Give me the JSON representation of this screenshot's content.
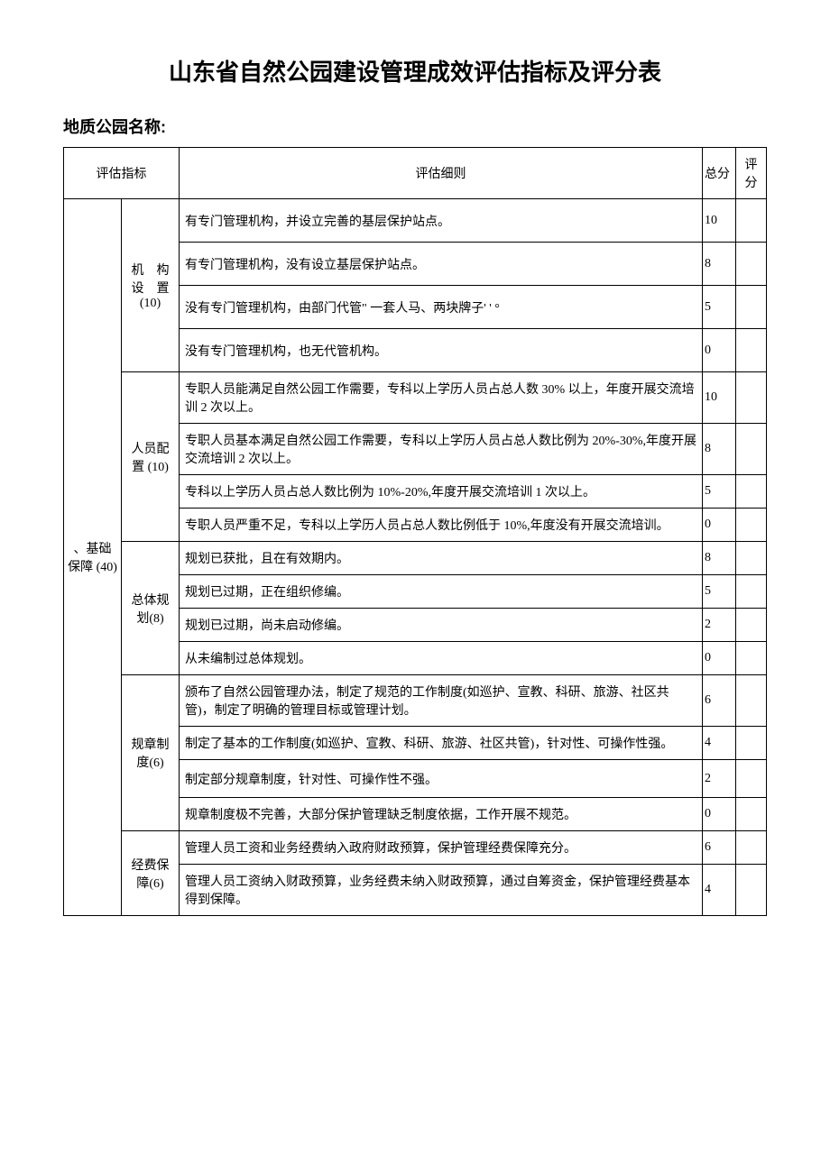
{
  "title": "山东省自然公园建设管理成效评估指标及评分表",
  "subtitle": "地质公园名称:",
  "headers": {
    "indicator": "评估指标",
    "rule": "评估细则",
    "total_score": "总分",
    "eval_score": "评 分"
  },
  "level1": {
    "name": "、基础保障 (40)"
  },
  "sections": [
    {
      "name": "机　构设　置 (10)",
      "rows": [
        {
          "text": "有专门管理机构，并设立完善的基层保护站点。",
          "score": "10"
        },
        {
          "text": "有专门管理机构，没有设立基层保护站点。",
          "score": "8"
        },
        {
          "text": "没有专门管理机构，由部门代管\" 一套人马、两块牌子' ' °",
          "score": "5"
        },
        {
          "text": "没有专门管理机构，也无代管机构。",
          "score": "0"
        }
      ]
    },
    {
      "name": "人员配置 (10)",
      "rows": [
        {
          "text": "专职人员能满足自然公园工作需要，专科以上学历人员占总人数 30% 以上，年度开展交流培训 2 次以上。",
          "score": "10"
        },
        {
          "text": "专职人员基本满足自然公园工作需要，专科以上学历人员占总人数比例为 20%-30%,年度开展交流培训 2 次以上。",
          "score": "8"
        },
        {
          "text": "专科以上学历人员占总人数比例为 10%-20%,年度开展交流培训 1 次以上。",
          "score": "5"
        },
        {
          "text": "专职人员严重不足，专科以上学历人员占总人数比例低于 10%,年度没有开展交流培训。",
          "score": "0"
        }
      ]
    },
    {
      "name": "总体规划(8)",
      "rows": [
        {
          "text": "规划已获批，且在有效期内。",
          "score": "8"
        },
        {
          "text": "规划已过期，正在组织修编。",
          "score": "5"
        },
        {
          "text": "规划已过期，尚未启动修编。",
          "score": "2"
        },
        {
          "text": "从未编制过总体规划。",
          "score": "0"
        }
      ]
    },
    {
      "name": "规章制度(6)",
      "rows": [
        {
          "text": "颁布了自然公园管理办法，制定了规范的工作制度(如巡护、宣教、科研、旅游、社区共管)，制定了明确的管理目标或管理计划。",
          "score": "6"
        },
        {
          "text": "制定了基本的工作制度(如巡护、宣教、科研、旅游、社区共管)，针对性、可操作性强。",
          "score": "4"
        },
        {
          "text": "制定部分规章制度，针对性、可操作性不强。",
          "score": "2"
        },
        {
          "text": "规章制度极不完善，大部分保护管理缺乏制度依据，工作开展不规范。",
          "score": "0"
        }
      ]
    },
    {
      "name": "经费保障(6)",
      "rows": [
        {
          "text": "管理人员工资和业务经费纳入政府财政预算，保护管理经费保障充分。",
          "score": "6"
        },
        {
          "text": "管理人员工资纳入财政预算，业务经费未纳入财政预算，通过自筹资金，保护管理经费基本得到保障。",
          "score": "4"
        }
      ]
    }
  ]
}
